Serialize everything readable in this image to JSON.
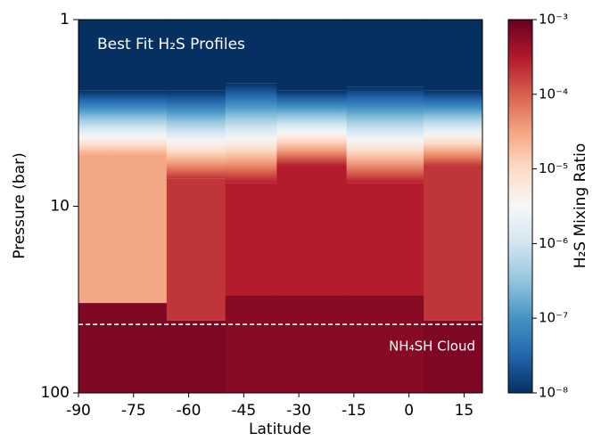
{
  "chart_data": {
    "type": "heatmap",
    "title": "Best Fit H₂S Profiles",
    "xlabel": "Latitude",
    "ylabel": "Pressure (bar)",
    "xlim": [
      -90,
      20
    ],
    "xticks": [
      -90,
      -75,
      -60,
      -45,
      -30,
      -15,
      0,
      15
    ],
    "ylim": [
      1,
      100
    ],
    "yticks": [
      1,
      10,
      100
    ],
    "yscale": "log",
    "yinverted": true,
    "colorbar": {
      "label": "H₂S Mixing Ratio",
      "clim": [
        1e-08,
        0.001
      ],
      "scale": "log",
      "ticks": [
        {
          "value": 0.001,
          "label": "10⁻³"
        },
        {
          "value": 0.0001,
          "label": "10⁻⁴"
        },
        {
          "value": 1e-05,
          "label": "10⁻⁵"
        },
        {
          "value": 1e-06,
          "label": "10⁻⁶"
        },
        {
          "value": 1e-07,
          "label": "10⁻⁷"
        },
        {
          "value": 1e-08,
          "label": "10⁻⁸"
        }
      ],
      "colormap": [
        "#053061",
        "#2166ac",
        "#4393c3",
        "#92c5de",
        "#d1e5f0",
        "#f7f7f7",
        "#fddbc7",
        "#f4a582",
        "#d6604d",
        "#b2182b",
        "#67001f"
      ]
    },
    "bands": [
      {
        "lat": [
          -90,
          -66
        ],
        "p": [
          2.4,
          5.3,
          33
        ],
        "ratio": [
          1e-08,
          3e-05,
          0.0007
        ]
      },
      {
        "lat": [
          -66,
          -50
        ],
        "p": [
          2.4,
          7.1,
          41
        ],
        "ratio": [
          1e-08,
          0.0002,
          0.0007
        ]
      },
      {
        "lat": [
          -50,
          -36
        ],
        "p": [
          2.2,
          7.5,
          30
        ],
        "ratio": [
          1e-08,
          0.0003,
          0.0006
        ]
      },
      {
        "lat": [
          -36,
          -17
        ],
        "p": [
          2.4,
          6.1,
          30
        ],
        "ratio": [
          1e-08,
          0.0003,
          0.0006
        ]
      },
      {
        "lat": [
          -17,
          4
        ],
        "p": [
          2.3,
          7.5,
          30
        ],
        "ratio": [
          1e-08,
          0.0003,
          0.0006
        ]
      },
      {
        "lat": [
          4,
          20
        ],
        "p": [
          2.4,
          6.1,
          41
        ],
        "ratio": [
          1e-08,
          0.0002,
          0.0007
        ]
      }
    ],
    "cloud": {
      "label": "NH₄SH Cloud",
      "p": 43
    }
  }
}
